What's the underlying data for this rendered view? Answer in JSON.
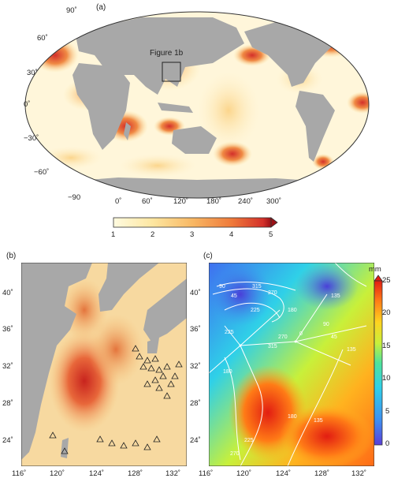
{
  "panel_a": {
    "label": "(a)",
    "inset_label": "Figure 1b",
    "lat_labels": [
      "90˚",
      "60˚",
      "30˚",
      "0˚",
      "−30˚",
      "−60˚",
      "−90"
    ],
    "lon_labels": [
      "0˚",
      "60˚",
      "120˚",
      "180˚",
      "240˚",
      "300˚"
    ],
    "colorbar": {
      "ticks": [
        "1",
        "2",
        "3",
        "4",
        "5"
      ],
      "min": 1,
      "max": 5,
      "colors": [
        "#fffbe0",
        "#fde6a0",
        "#f8b864",
        "#ef7a3a",
        "#d3302a",
        "#9a1016"
      ]
    }
  },
  "panel_b": {
    "label": "(b)",
    "lat_labels": [
      "40˚",
      "36˚",
      "32˚",
      "28˚",
      "24˚"
    ],
    "lon_labels": [
      "116˚",
      "120˚",
      "124˚",
      "128˚",
      "132˚"
    ]
  },
  "panel_c": {
    "label": "(c)",
    "lat_labels": [
      "40˚",
      "36˚",
      "32˚",
      "28˚",
      "24˚"
    ],
    "lon_labels": [
      "116˚",
      "120˚",
      "124˚",
      "128˚",
      "132˚"
    ],
    "contour_labels": [
      "90",
      "45",
      "315",
      "270",
      "225",
      "180",
      "135",
      "90",
      "45",
      "0",
      "270",
      "315",
      "225",
      "180",
      "135",
      "135",
      "180",
      "225",
      "270"
    ],
    "colorbar": {
      "unit": "mm",
      "ticks": [
        "0",
        "5",
        "10",
        "15",
        "20",
        "25"
      ],
      "min": 0,
      "max": 25,
      "colors": [
        "#5a3fd8",
        "#3f8ff0",
        "#2fd0e8",
        "#4fe39a",
        "#c8f03a",
        "#ffd21f",
        "#ff7b16",
        "#e21d12"
      ]
    }
  }
}
